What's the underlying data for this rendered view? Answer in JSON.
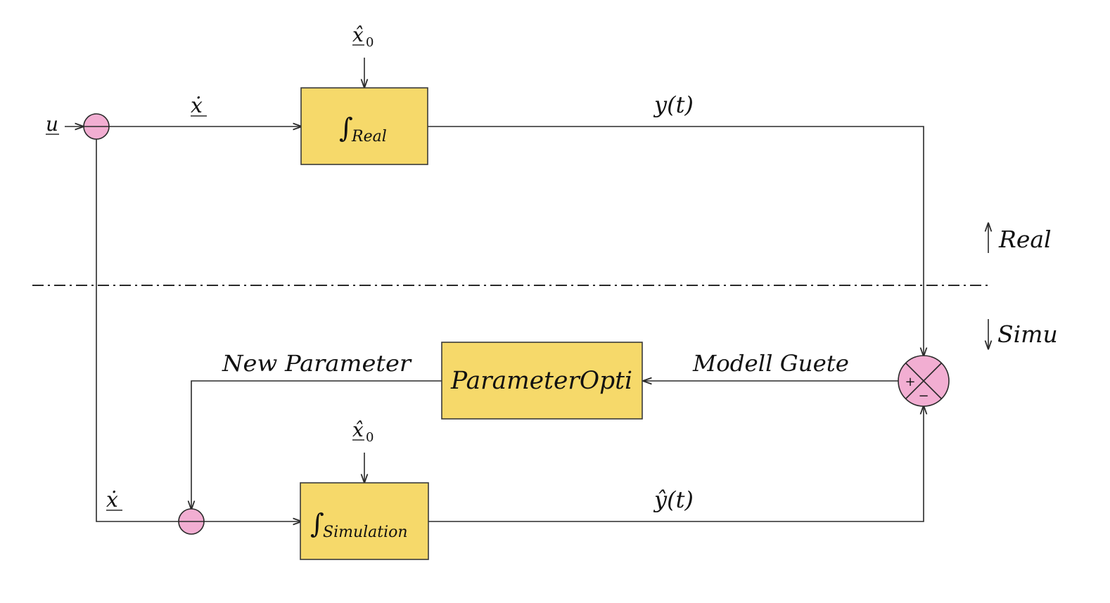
{
  "blocks": {
    "real": {
      "symbol": "∫",
      "subscript": "Real"
    },
    "simulation": {
      "symbol": "∫",
      "subscript": "Simulation"
    },
    "optimizer": {
      "label": "ParameterOpti"
    }
  },
  "signals": {
    "input_u": "u",
    "xdot_top": "ẋ",
    "xdot_bottom": "ẋ",
    "x0_top": {
      "base": "x̂",
      "sub": "0"
    },
    "x0_bottom": {
      "base": "x̂",
      "sub": "0"
    },
    "y_real": "y(t)",
    "y_sim": "ŷ(t)",
    "new_parameter": "New Parameter",
    "modell_guete": "Modell Guete"
  },
  "regions": {
    "real": "Real",
    "simu": "Simu"
  },
  "comparator": {
    "plus": "+",
    "minus": "−"
  },
  "colors": {
    "block_fill": "#f6d96a",
    "node_fill": "#f2aed2",
    "line": "#2a2a2a"
  }
}
